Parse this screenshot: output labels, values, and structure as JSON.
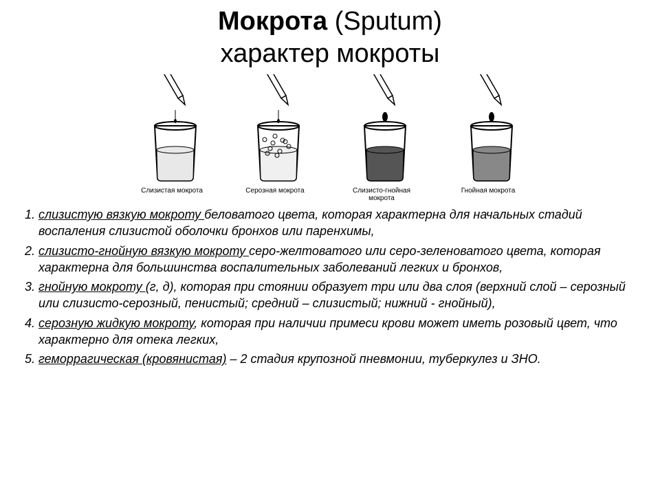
{
  "title_bold": "Мокрота",
  "title_paren": "(Sputum)",
  "subtitle": "характер мокроты",
  "beakers": [
    {
      "caption": "Слизистая мокрота",
      "fillShade": "#e8e8e8",
      "bubbles": false,
      "dropStyle": "thin"
    },
    {
      "caption": "Серозная мокрота",
      "fillShade": "#f0f0f0",
      "bubbles": true,
      "dropStyle": "thin"
    },
    {
      "caption": "Слизисто-гнойная мокрота",
      "fillShade": "#555555",
      "bubbles": false,
      "dropStyle": "thick"
    },
    {
      "caption": "Гнойная мокрота",
      "fillShade": "#888888",
      "bubbles": false,
      "dropStyle": "thick"
    }
  ],
  "items": [
    {
      "lead": "слизистую вязкую мокроту ",
      "rest": "беловатого цвета, которая характерна для начальных стадий воспаления слизистой оболочки бронхов или паренхимы,"
    },
    {
      "lead": "слизисто-гнойную вязкую мокроту ",
      "rest": "серо-желтоватого или серо-зеленоватого цвета, которая характерна для большинства воспалительных заболеваний легких и бронхов,"
    },
    {
      "lead": "гнойную мокроту ",
      "rest": "(г, д), которая при стоянии образует три или два слоя (верхний слой – серозный или слизисто-серозный, пенистый; средний – слизистый; нижний - гнойный),"
    },
    {
      "lead": "серозную жидкую мокроту",
      "rest": ", которая при наличии примеси крови может иметь розовый цвет, что характерно для отека легких,"
    },
    {
      "lead": "геморрагическая (кровянистая)",
      "rest": " – 2 стадия крупозной пневмонии, туберкулез и ЗНО."
    }
  ],
  "colors": {
    "text": "#000000",
    "bg": "#ffffff",
    "stroke": "#000000"
  }
}
